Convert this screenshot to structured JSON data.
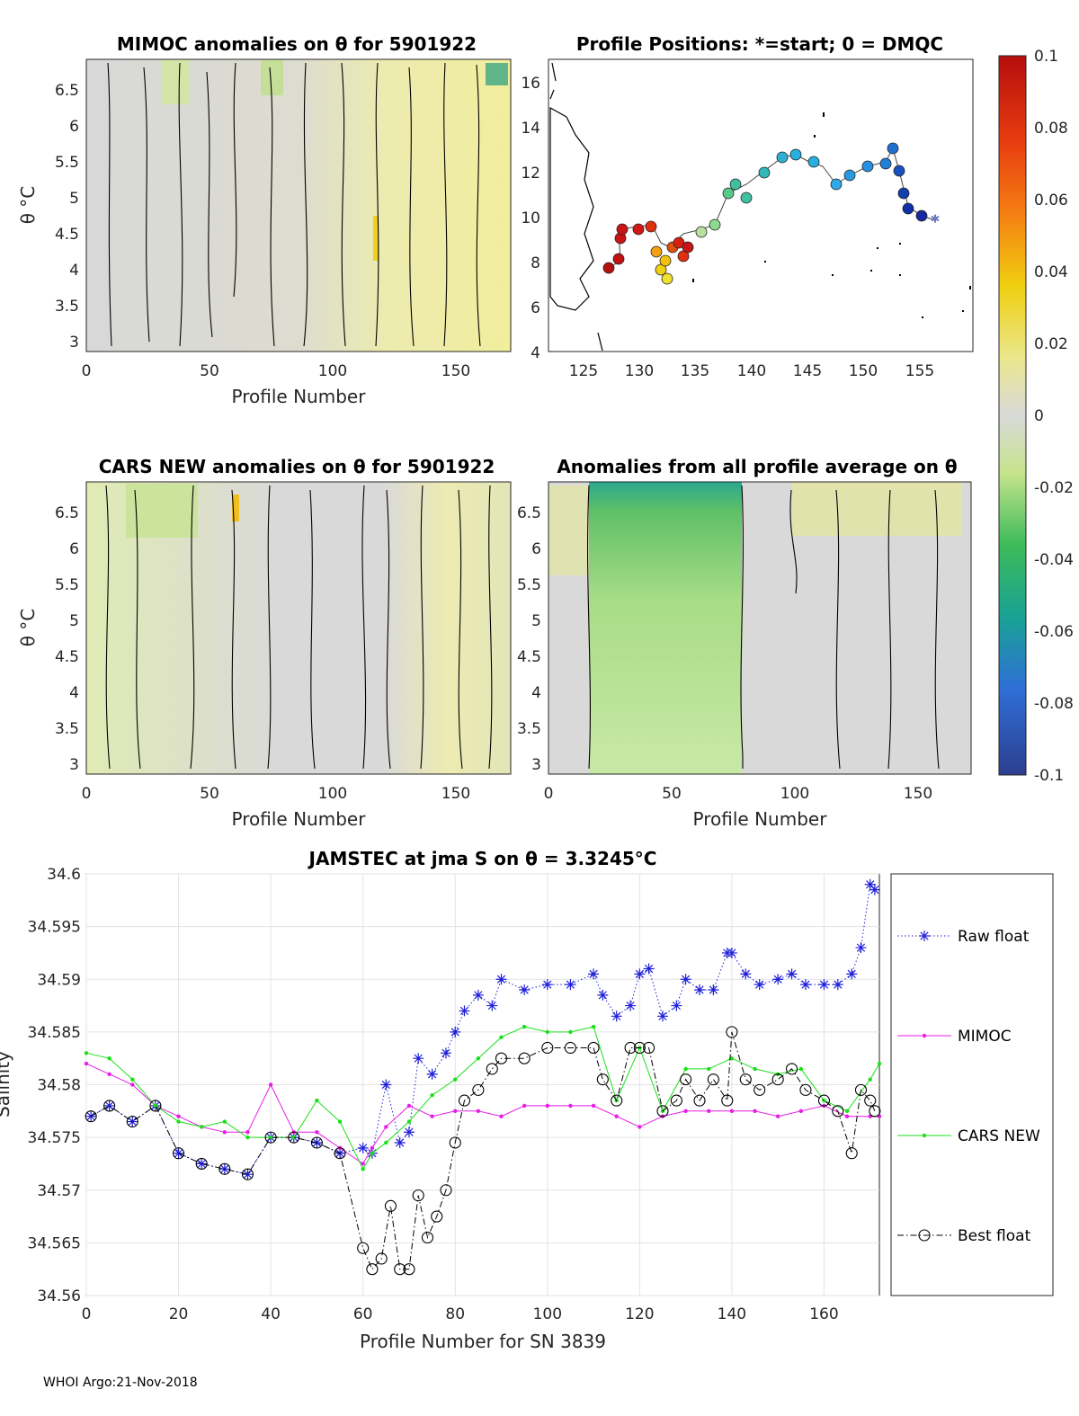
{
  "footer": "WHOI Argo:21-Nov-2018",
  "colorbar": {
    "ticks": [
      "0.1",
      "0.08",
      "0.06",
      "0.04",
      "0.02",
      "0",
      "-0.02",
      "-0.04",
      "-0.06",
      "-0.08",
      "-0.1"
    ],
    "range": [
      -0.1,
      0.1
    ]
  },
  "panels": {
    "mimoc": {
      "title": "MIMOC anomalies on θ  for 5901922",
      "ylabel": "θ °C",
      "xlabel": "Profile Number",
      "xticks": [
        "0",
        "50",
        "100",
        "150"
      ],
      "yticks": [
        "6.5",
        "6",
        "5.5",
        "5",
        "4.5",
        "4",
        "3.5",
        "3"
      ]
    },
    "positions": {
      "title": "Profile Positions: *=start; 0 = DMQC",
      "xticks": [
        "125",
        "130",
        "135",
        "140",
        "145",
        "150",
        "155"
      ],
      "yticks": [
        "16",
        "14",
        "12",
        "10",
        "8",
        "6",
        "4"
      ]
    },
    "cars": {
      "title": "CARS NEW anomalies on θ for 5901922",
      "ylabel": "θ °C",
      "xlabel": "Profile Number",
      "xticks": [
        "0",
        "50",
        "100",
        "150"
      ],
      "yticks": [
        "6.5",
        "6",
        "5.5",
        "5",
        "4.5",
        "4",
        "3.5",
        "3"
      ]
    },
    "allavg": {
      "title": "Anomalies from all profile average on θ",
      "xlabel": "Profile Number",
      "xticks": [
        "0",
        "50",
        "100",
        "150"
      ],
      "yticks": [
        "6.5",
        "6",
        "5.5",
        "5",
        "4.5",
        "4",
        "3.5",
        "3"
      ]
    }
  },
  "chart_data": {
    "type": "line",
    "title": "JAMSTEC at jma S on θ = 3.3245°C",
    "xlabel": "Profile Number for SN 3839",
    "ylabel": "Salinity",
    "xlim": [
      0,
      172
    ],
    "ylim": [
      34.56,
      34.6
    ],
    "xticks": [
      "0",
      "20",
      "40",
      "60",
      "80",
      "100",
      "120",
      "140",
      "160"
    ],
    "yticks": [
      "34.6",
      "34.595",
      "34.59",
      "34.585",
      "34.58",
      "34.575",
      "34.57",
      "34.565",
      "34.56"
    ],
    "legend_position": "right",
    "series": [
      {
        "name": "Raw float",
        "color": "#1f1fd8",
        "style": "dotted",
        "marker": "asterisk",
        "x": [
          1,
          5,
          10,
          15,
          20,
          25,
          30,
          35,
          40,
          45,
          50,
          55,
          60,
          62,
          65,
          68,
          70,
          72,
          75,
          78,
          80,
          82,
          85,
          88,
          90,
          95,
          100,
          105,
          110,
          112,
          115,
          118,
          120,
          122,
          125,
          128,
          130,
          133,
          136,
          139,
          140,
          143,
          146,
          150,
          153,
          156,
          160,
          163,
          166,
          168,
          170,
          171
        ],
        "y": [
          34.577,
          34.578,
          34.5765,
          34.578,
          34.5735,
          34.5725,
          34.572,
          34.5715,
          34.575,
          34.575,
          34.5745,
          34.5735,
          34.574,
          34.5735,
          34.58,
          34.5745,
          34.5755,
          34.5825,
          34.581,
          34.583,
          34.585,
          34.587,
          34.5885,
          34.5875,
          34.59,
          34.589,
          34.5895,
          34.5895,
          34.5905,
          34.5885,
          34.5865,
          34.5875,
          34.5905,
          34.591,
          34.5865,
          34.5875,
          34.59,
          34.589,
          34.589,
          34.5925,
          34.5925,
          34.5905,
          34.5895,
          34.59,
          34.5905,
          34.5895,
          34.5895,
          34.5895,
          34.5905,
          34.593,
          34.599,
          34.5985
        ]
      },
      {
        "name": "MIMOC",
        "color": "#e81be8",
        "style": "solid",
        "marker": "dot",
        "x": [
          0,
          5,
          10,
          15,
          20,
          25,
          30,
          35,
          40,
          45,
          50,
          55,
          60,
          62,
          65,
          70,
          75,
          80,
          85,
          90,
          95,
          100,
          105,
          110,
          115,
          120,
          125,
          130,
          135,
          140,
          145,
          150,
          155,
          160,
          165,
          170,
          172
        ],
        "y": [
          34.582,
          34.581,
          34.58,
          34.578,
          34.577,
          34.576,
          34.5755,
          34.5755,
          34.58,
          34.5755,
          34.5755,
          34.574,
          34.5725,
          34.574,
          34.576,
          34.578,
          34.577,
          34.5775,
          34.5775,
          34.577,
          34.578,
          34.578,
          34.578,
          34.578,
          34.577,
          34.576,
          34.577,
          34.5775,
          34.5775,
          34.5775,
          34.5775,
          34.577,
          34.5775,
          34.578,
          34.577,
          34.577,
          34.577
        ]
      },
      {
        "name": "CARS NEW",
        "color": "#19e019",
        "style": "solid",
        "marker": "dot",
        "x": [
          0,
          5,
          10,
          15,
          20,
          25,
          30,
          35,
          40,
          45,
          50,
          55,
          60,
          62,
          65,
          70,
          75,
          80,
          85,
          90,
          95,
          100,
          105,
          110,
          115,
          120,
          125,
          130,
          135,
          140,
          145,
          150,
          155,
          160,
          165,
          170,
          172
        ],
        "y": [
          34.583,
          34.5825,
          34.5805,
          34.578,
          34.5765,
          34.576,
          34.5765,
          34.575,
          34.575,
          34.575,
          34.5785,
          34.5765,
          34.572,
          34.5735,
          34.5745,
          34.5765,
          34.579,
          34.5805,
          34.5825,
          34.5845,
          34.5855,
          34.585,
          34.585,
          34.5855,
          34.5785,
          34.5835,
          34.5775,
          34.5815,
          34.5815,
          34.5825,
          34.5815,
          34.581,
          34.5815,
          34.5785,
          34.5775,
          34.5805,
          34.582
        ]
      },
      {
        "name": "Best float",
        "color": "#000000",
        "style": "dashdot",
        "marker": "circle",
        "x": [
          1,
          5,
          10,
          15,
          20,
          25,
          30,
          35,
          40,
          45,
          50,
          55,
          60,
          62,
          64,
          66,
          68,
          70,
          72,
          74,
          76,
          78,
          80,
          82,
          85,
          88,
          90,
          95,
          100,
          105,
          110,
          112,
          115,
          118,
          120,
          122,
          125,
          128,
          130,
          133,
          136,
          139,
          140,
          143,
          146,
          150,
          153,
          156,
          160,
          163,
          166,
          168,
          170,
          171
        ],
        "y": [
          34.577,
          34.578,
          34.5765,
          34.578,
          34.5735,
          34.5725,
          34.572,
          34.5715,
          34.575,
          34.575,
          34.5745,
          34.5735,
          34.5645,
          34.5625,
          34.5635,
          34.5685,
          34.5625,
          34.5625,
          34.5695,
          34.5655,
          34.5675,
          34.57,
          34.5745,
          34.5785,
          34.5795,
          34.5815,
          34.5825,
          34.5825,
          34.5835,
          34.5835,
          34.5835,
          34.5805,
          34.5785,
          34.5835,
          34.5835,
          34.5835,
          34.5775,
          34.5785,
          34.5805,
          34.5785,
          34.5805,
          34.5785,
          34.585,
          34.5805,
          34.5795,
          34.5805,
          34.5815,
          34.5795,
          34.5785,
          34.5775,
          34.5735,
          34.5795,
          34.5785,
          34.5775
        ]
      }
    ]
  }
}
